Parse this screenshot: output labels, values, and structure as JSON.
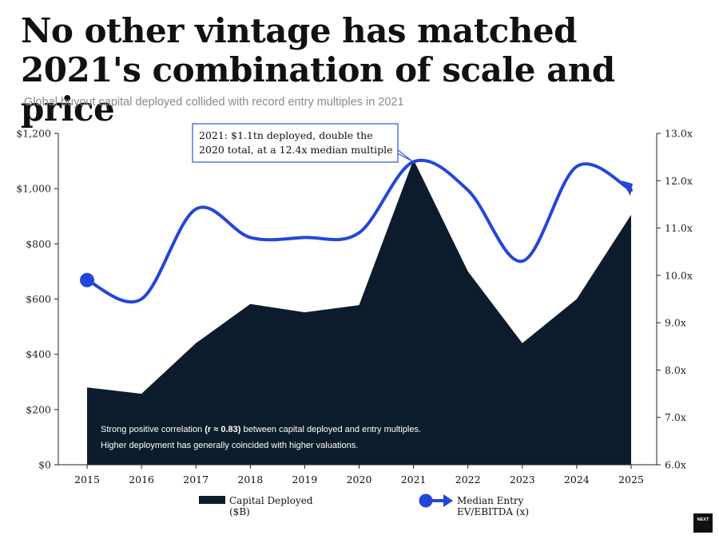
{
  "title": "No other vintage has matched 2021's combination of scale and price",
  "subtitle": "Global buyout capital deployed collided with record entry multiples in 2021",
  "logo_text": "NEXT",
  "colors": {
    "area": "#0c1c2c",
    "line": "#2446d8",
    "annotation_border": "#2f55d4"
  },
  "chart_data": {
    "type": "area",
    "categories": [
      "2015",
      "2016",
      "2017",
      "2018",
      "2019",
      "2020",
      "2021",
      "2022",
      "2023",
      "2024",
      "2025"
    ],
    "series": [
      {
        "name": "Capital Deployed ($B)",
        "type": "area",
        "axis": "left",
        "values": [
          280,
          257,
          440,
          582,
          552,
          578,
          1105,
          700,
          440,
          600,
          905
        ]
      },
      {
        "name": "Median Entry EV/EBITDA (x)",
        "type": "line",
        "axis": "right",
        "values": [
          9.9,
          9.5,
          11.4,
          10.8,
          10.8,
          10.9,
          12.4,
          11.8,
          10.3,
          12.3,
          11.8
        ]
      }
    ],
    "y_left": {
      "min": 0,
      "max": 1200,
      "ticks": [
        0,
        200,
        400,
        600,
        800,
        1000,
        1200
      ],
      "tick_labels": [
        "$0",
        "$200",
        "$400",
        "$600",
        "$800",
        "$1,000",
        "$1,200"
      ]
    },
    "y_right": {
      "min": 6,
      "max": 13,
      "ticks": [
        6,
        7,
        8,
        9,
        10,
        11,
        12,
        13
      ],
      "tick_labels": [
        "6.0x",
        "7.0x",
        "8.0x",
        "9.0x",
        "10.0x",
        "11.0x",
        "12.0x",
        "13.0x"
      ]
    },
    "annotation": {
      "lines": [
        "2021: $1.1tn deployed, double the",
        "2020 total, at a 12.4x median multiple"
      ],
      "points_to": "2021"
    },
    "note": {
      "line1_prefix": "Strong positive correlation ",
      "line1_bold": "(r ≈ 0.83)",
      "line1_suffix": " between capital deployed and entry multiples.",
      "line2": "Higher deployment has generally coincided with higher valuations."
    },
    "legend": [
      {
        "label_lines": [
          "Capital Deployed",
          "($B)"
        ],
        "kind": "area"
      },
      {
        "label_lines": [
          "Median Entry",
          "EV/EBITDA (x)"
        ],
        "kind": "line"
      }
    ],
    "grid": false,
    "legend_position": "bottom"
  }
}
